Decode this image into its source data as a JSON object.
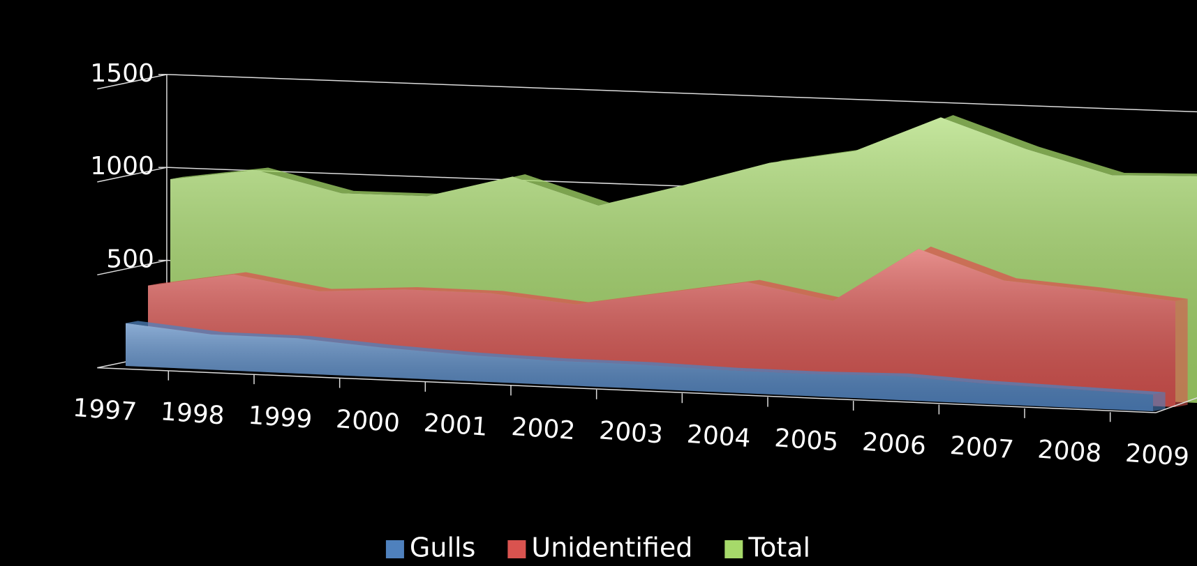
{
  "chart_data": {
    "type": "area3d",
    "categories": [
      "1997",
      "1998",
      "1999",
      "2000",
      "2001",
      "2002",
      "2003",
      "2004",
      "2005",
      "2006",
      "2007",
      "2008",
      "2009"
    ],
    "series": [
      {
        "name": "Gulls",
        "color": "#4f81bd",
        "values": [
          230,
          190,
          190,
          160,
          140,
          130,
          130,
          120,
          120,
          130,
          110,
          100,
          90
        ]
      },
      {
        "name": "Unidentified",
        "color": "#d9534f",
        "values": [
          410,
          490,
          420,
          450,
          450,
          410,
          490,
          570,
          490,
          790,
          640,
          610,
          570
        ]
      },
      {
        "name": "Total",
        "color": "#a6d96a",
        "values": [
          960,
          1030,
          925,
          930,
          1055,
          920,
          1050,
          1190,
          1275,
          1475,
          1325,
          1205,
          1220
        ]
      }
    ],
    "ylim": [
      0,
      1500
    ],
    "yticks": [
      0,
      500,
      1000,
      1500
    ],
    "grid": true,
    "legend": "bottom"
  }
}
